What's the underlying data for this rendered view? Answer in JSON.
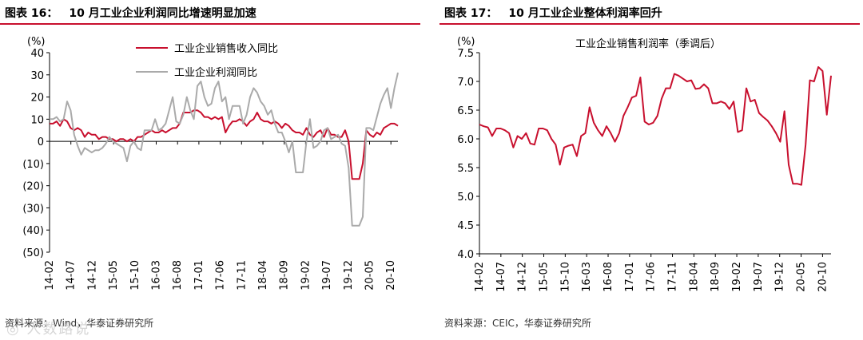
{
  "left": {
    "title_fig": "图表 16：",
    "title_text": "10 月工业企业利润同比增速明显加速",
    "source": "资料来源：Wind，华泰证券研究所",
    "watermark": "◎ 人数路说"
  },
  "right": {
    "title_fig": "图表 17：",
    "title_text": "10 月工业企业整体利润率回升",
    "source": "资料来源：CEIC，华泰证券研究所"
  },
  "chart_data": [
    {
      "type": "line",
      "title": "10 月工业企业利润同比增速明显加速",
      "ylabel": "(%)",
      "ylim": [
        -50,
        40
      ],
      "yticks": [
        40,
        30,
        20,
        10,
        0,
        -10,
        -20,
        -30,
        -40,
        -50
      ],
      "ytick_labels": [
        "40",
        "30",
        "20",
        "10",
        "0",
        "(10)",
        "(20)",
        "(30)",
        "(40)",
        "(50)"
      ],
      "xtick_labels": [
        "14-02",
        "14-07",
        "14-12",
        "15-05",
        "15-10",
        "16-03",
        "16-08",
        "17-01",
        "17-06",
        "17-11",
        "18-04",
        "18-09",
        "19-02",
        "19-07",
        "19-12",
        "20-05",
        "20-10"
      ],
      "legend_position": "top-right",
      "series": [
        {
          "name": "工业企业销售收入同比",
          "color": "#c8102e",
          "values": [
            8,
            8,
            9,
            7,
            10,
            9,
            6,
            5,
            6,
            5,
            2,
            4,
            3,
            3,
            1,
            2,
            2,
            1,
            1,
            0,
            1,
            1,
            0,
            1,
            0,
            2,
            2,
            3,
            4,
            5,
            4,
            4,
            5,
            4,
            5,
            6,
            6,
            8,
            13,
            13,
            13,
            14,
            14,
            13,
            11,
            11,
            10,
            11,
            10,
            11,
            4,
            7,
            9,
            9,
            10,
            9,
            7,
            9,
            10,
            13,
            10,
            9,
            9,
            8,
            9,
            8,
            6,
            8,
            7,
            5,
            4,
            4,
            3,
            6,
            3,
            2,
            4,
            5,
            2,
            6,
            3,
            3,
            2,
            2,
            5,
            0,
            -17,
            -17,
            -17,
            -10,
            5,
            3,
            2,
            4,
            3,
            6,
            7,
            8,
            8,
            7
          ]
        },
        {
          "name": "工业企业利润同比",
          "color": "#aaaaaa",
          "values": [
            10,
            10,
            11,
            9,
            10,
            18,
            14,
            3,
            -2,
            -6,
            -3,
            -4,
            -5,
            -4,
            -4,
            -3,
            -1,
            2,
            0,
            -1,
            -2,
            -3,
            -9,
            -2,
            0,
            -3,
            -4,
            5,
            5,
            5,
            10,
            5,
            6,
            8,
            14,
            20,
            9,
            8,
            12,
            20,
            14,
            10,
            25,
            27,
            20,
            16,
            17,
            24,
            27,
            18,
            20,
            10,
            16,
            16,
            16,
            8,
            12,
            20,
            24,
            22,
            18,
            16,
            12,
            14,
            8,
            4,
            4,
            0,
            -5,
            0,
            -14,
            -14,
            -14,
            0,
            10,
            -3,
            -2,
            0,
            5,
            6,
            1,
            2,
            3,
            -1,
            -2,
            -12,
            -38,
            -38,
            -38,
            -34,
            6,
            6,
            5,
            11,
            17,
            21,
            24,
            15,
            24,
            31
          ]
        }
      ]
    },
    {
      "type": "line",
      "title": "工业企业销售利润率（季调后）",
      "ylabel": "(%)",
      "ylim": [
        4.0,
        7.5
      ],
      "yticks": [
        7.5,
        7.0,
        6.5,
        6.0,
        5.5,
        5.0,
        4.5,
        4.0
      ],
      "ytick_labels": [
        "7.5",
        "7.0",
        "6.5",
        "6.0",
        "5.5",
        "5.0",
        "4.5",
        "4.0"
      ],
      "xtick_labels": [
        "14-02",
        "14-07",
        "14-12",
        "15-05",
        "15-10",
        "16-03",
        "16-08",
        "17-01",
        "17-06",
        "17-11",
        "18-04",
        "18-09",
        "19-02",
        "19-07",
        "19-12",
        "20-05",
        "20-10"
      ],
      "legend_position": "top-center",
      "series": [
        {
          "name": "工业企业销售利润率（季调后）",
          "color": "#c8102e",
          "values": [
            6.25,
            6.22,
            6.2,
            6.05,
            6.18,
            6.18,
            6.15,
            6.1,
            5.85,
            6.05,
            6.0,
            6.1,
            5.92,
            5.9,
            6.18,
            6.18,
            6.15,
            6.0,
            5.9,
            5.55,
            5.85,
            5.88,
            5.9,
            5.7,
            6.05,
            6.1,
            6.55,
            6.28,
            6.15,
            6.05,
            6.22,
            6.1,
            5.95,
            6.1,
            6.4,
            6.55,
            6.72,
            6.75,
            7.07,
            6.3,
            6.25,
            6.28,
            6.4,
            6.7,
            6.88,
            6.88,
            7.13,
            7.1,
            7.05,
            7.0,
            7.02,
            6.87,
            6.88,
            6.95,
            6.88,
            6.62,
            6.62,
            6.65,
            6.62,
            6.52,
            6.65,
            6.12,
            6.15,
            6.88,
            6.65,
            6.68,
            6.45,
            6.38,
            6.32,
            6.22,
            6.1,
            5.95,
            6.48,
            5.55,
            5.22,
            5.22,
            5.2,
            5.9,
            7.02,
            7.0,
            7.25,
            7.18,
            6.42,
            7.1
          ]
        }
      ]
    }
  ]
}
